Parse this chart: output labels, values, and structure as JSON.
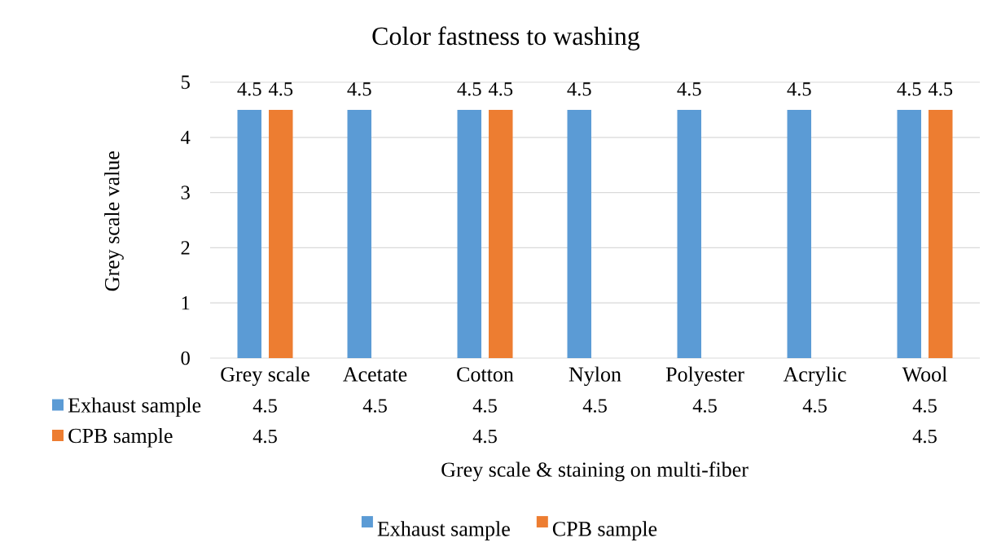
{
  "chart_data": {
    "type": "bar",
    "title": "Color fastness to washing",
    "xlabel": "Grey scale & staining on multi-fiber",
    "ylabel": "Grey scale value",
    "categories": [
      "Grey scale",
      "Acetate",
      "Cotton",
      "Nylon",
      "Polyester",
      "Acrylic",
      "Wool"
    ],
    "series": [
      {
        "name": "Exhaust sample",
        "color": "#5b9bd5",
        "values": [
          4.5,
          4.5,
          4.5,
          4.5,
          4.5,
          4.5,
          4.5
        ]
      },
      {
        "name": "CPB sample",
        "color": "#ed7d31",
        "values": [
          4.5,
          null,
          4.5,
          null,
          null,
          null,
          4.5
        ]
      }
    ],
    "annotations": [
      "4.5",
      "4.5",
      "4.5",
      "4.5",
      "4.5",
      "4.5",
      "4.5",
      "4.5",
      "4.5",
      "4.5"
    ],
    "ylim": [
      0,
      5
    ],
    "yticks": [
      0,
      1,
      2,
      3,
      4,
      5
    ],
    "grid": "y",
    "legend": "bottom",
    "data_labels": true
  }
}
